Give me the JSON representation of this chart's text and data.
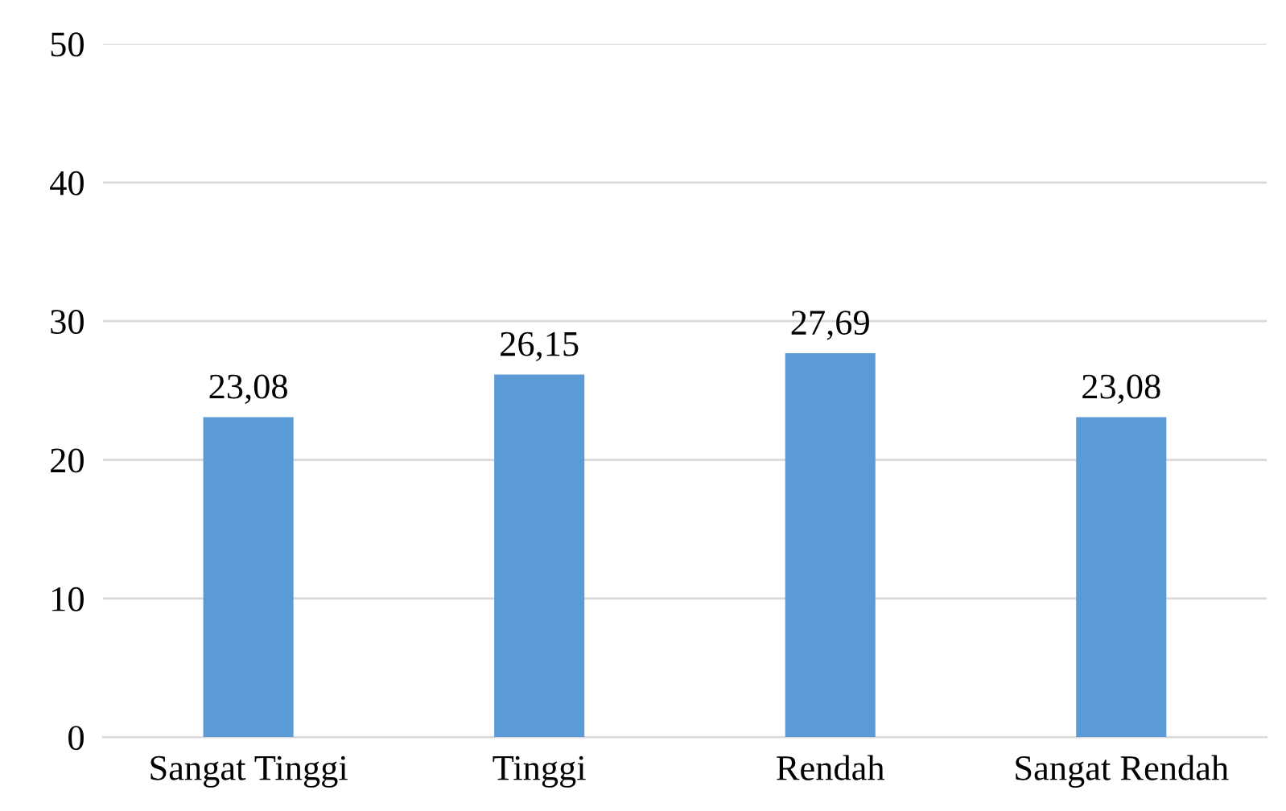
{
  "chart_data": {
    "type": "bar",
    "categories": [
      "Sangat Tinggi",
      "Tinggi",
      "Rendah",
      "Sangat Rendah"
    ],
    "values": [
      23.08,
      26.15,
      27.69,
      23.08
    ],
    "value_labels": [
      "23,08",
      "26,15",
      "27,69",
      "23,08"
    ],
    "color": "#5b9bd5",
    "ylim": [
      0,
      50
    ],
    "yticks": [
      0,
      10,
      20,
      30,
      40,
      50
    ],
    "grid": "y",
    "legend": false
  }
}
